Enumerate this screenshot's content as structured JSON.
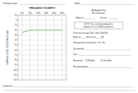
{
  "chart_data": {
    "type": "line",
    "title": "FREQUENCY IN HERTZ",
    "y_label": "HEARING LEVEL IN DECIBELS (dB)",
    "categories": [
      "250",
      "500",
      "1000",
      "2000",
      "4000",
      "8000"
    ],
    "values": [
      25,
      20,
      20,
      20,
      20,
      20
    ],
    "color": "#6cc46c",
    "ylim": [
      -10,
      120
    ],
    "yticks": [
      -10,
      0,
      10,
      20,
      30,
      40,
      50,
      60,
      70,
      80,
      90,
      100,
      110,
      120
    ],
    "grid": true
  },
  "document": {
    "header": {
      "location_label": "Testing location:",
      "name_label": "Name:"
    },
    "key": {
      "title": "Audiogram Key",
      "subtitle": "Air Conduction",
      "right": "Right ear",
      "left": "Left ear"
    },
    "note": [
      "NOTE: This screening audiogram is",
      "plotted at 20 or 25 dB hearing levels."
    ],
    "lines": [
      "Pure-tone average (500, 1000, 2000 Hz):",
      "Right ear ____ dB    Left ear ____ dB",
      "Hearing within normal limits:  Yes / No",
      "Screened by:",
      "Date:"
    ],
    "responses": {
      "label": "Responses:",
      "options": [
        "Reliable",
        "Unreliable"
      ]
    },
    "recommendation": "Recommendation:",
    "comments": "Comments:"
  }
}
